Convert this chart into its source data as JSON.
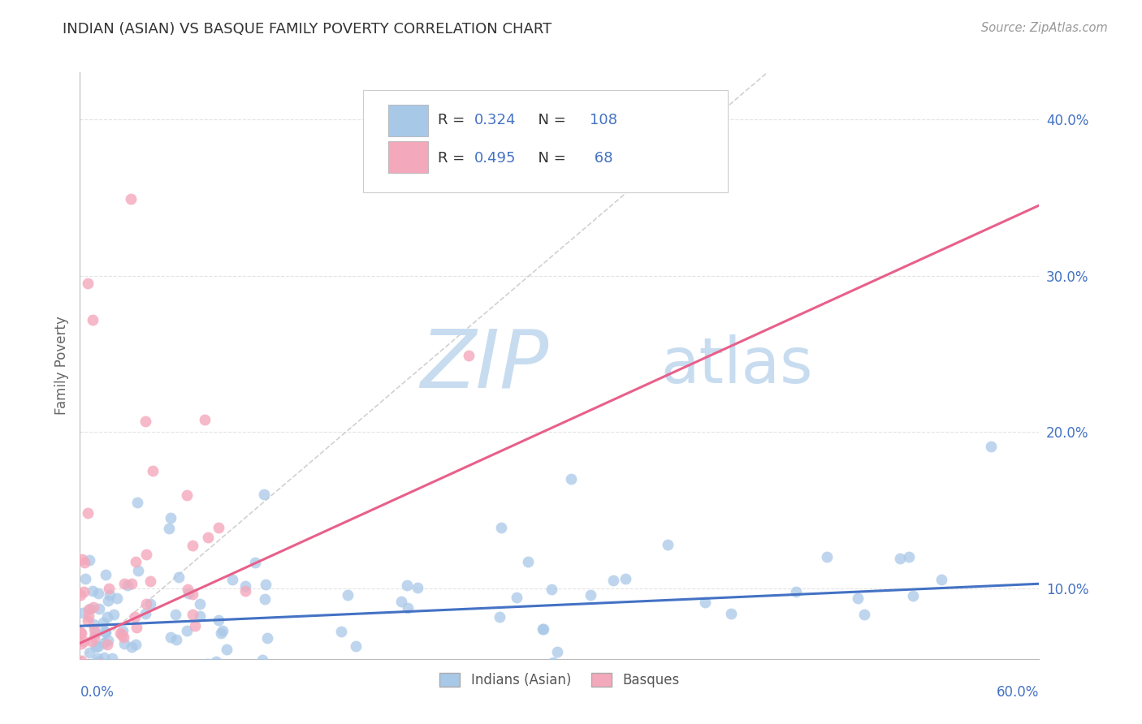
{
  "title": "INDIAN (ASIAN) VS BASQUE FAMILY POVERTY CORRELATION CHART",
  "source_text": "Source: ZipAtlas.com",
  "ylabel": "Family Poverty",
  "legend_labels": [
    "Indians (Asian)",
    "Basques"
  ],
  "legend_r": [
    0.324,
    0.495
  ],
  "legend_n": [
    108,
    68
  ],
  "blue_color": "#A8C8E8",
  "pink_color": "#F4A8BC",
  "blue_line_color": "#4472C4",
  "pink_line_color": "#E8608A",
  "title_color": "#333333",
  "value_color": "#4472C4",
  "source_color": "#999999",
  "background_color": "#FFFFFF",
  "grid_color": "#DDDDDD",
  "reference_line_color": "#CCCCCC",
  "watermark_zip_color": "#C8DCF0",
  "watermark_atlas_color": "#C8DCF0",
  "xlim": [
    0.0,
    0.6
  ],
  "ylim": [
    0.055,
    0.43
  ],
  "yticks": [
    0.1,
    0.2,
    0.3,
    0.4
  ],
  "ytick_labels": [
    "10.0%",
    "20.0%",
    "30.0%",
    "40.0%"
  ],
  "blue_trend_x": [
    0.0,
    0.6
  ],
  "blue_trend_y": [
    0.076,
    0.103
  ],
  "pink_trend_x": [
    0.0,
    0.6
  ],
  "pink_trend_y": [
    0.065,
    0.345
  ],
  "ref_line_x": [
    0.0,
    0.43
  ],
  "ref_line_y": [
    0.055,
    0.43
  ]
}
